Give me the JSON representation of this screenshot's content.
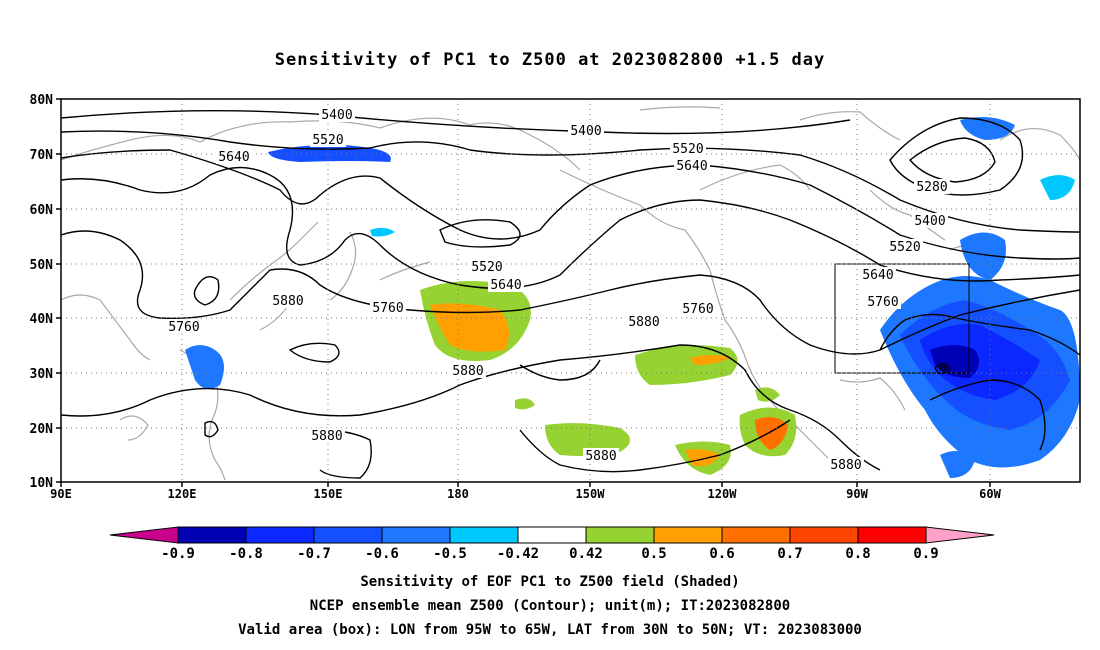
{
  "title": "Sensitivity of PC1 to Z500 at 2023082800 +1.5 day",
  "lat_labels": [
    "80N",
    "70N",
    "60N",
    "50N",
    "40N",
    "30N",
    "20N",
    "10N"
  ],
  "lon_labels": [
    "90E",
    "120E",
    "150E",
    "180",
    "150W",
    "120W",
    "90W",
    "60W"
  ],
  "contour_labels": [
    {
      "text": "5400"
    },
    {
      "text": "5400"
    },
    {
      "text": "5520"
    },
    {
      "text": "5520"
    },
    {
      "text": "5640"
    },
    {
      "text": "5640"
    },
    {
      "text": "5280"
    },
    {
      "text": "5400"
    },
    {
      "text": "5520"
    },
    {
      "text": "5520"
    },
    {
      "text": "5640"
    },
    {
      "text": "5640"
    },
    {
      "text": "5760"
    },
    {
      "text": "5760"
    },
    {
      "text": "5880"
    },
    {
      "text": "5760"
    },
    {
      "text": "5880"
    },
    {
      "text": "5760"
    },
    {
      "text": "5880"
    },
    {
      "text": "5880"
    },
    {
      "text": "5880"
    },
    {
      "text": "5880"
    }
  ],
  "colorbar": {
    "colors": [
      "#0000b4",
      "#0a28ff",
      "#1450ff",
      "#1e78ff",
      "#00c8ff",
      "#ffffff",
      "#96d232",
      "#ffa000",
      "#ff7000",
      "#ff4600",
      "#ff0000"
    ],
    "low_arrow_color": "#c8008c",
    "high_arrow_color": "#ffa0c8",
    "labels": [
      "-0.9",
      "-0.8",
      "-0.7",
      "-0.6",
      "-0.5",
      "-0.42",
      "0.42",
      "0.5",
      "0.6",
      "0.7",
      "0.8",
      "0.9"
    ]
  },
  "captions": [
    "Sensitivity of EOF PC1 to Z500 field (Shaded)",
    "NCEP ensemble mean Z500 (Contour); unit(m); IT:2023082800",
    "Valid area (box): LON from 95W to 65W, LAT from 30N to 50N; VT: 2023083000"
  ]
}
